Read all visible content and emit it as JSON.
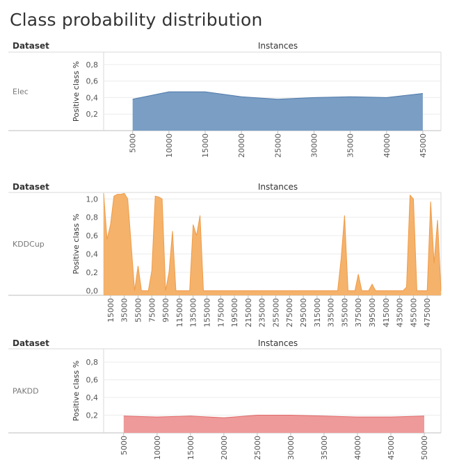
{
  "page": {
    "title": "Class probability distribution"
  },
  "chart_data": [
    {
      "type": "area",
      "header_left": "Dataset",
      "header_center": "Instances",
      "dataset": "Elec",
      "ylabel": "Positive class %",
      "color": "#7a9ec4",
      "stroke": "#4f79a9",
      "ylim": [
        0,
        0.95
      ],
      "yticks": [
        "0,2",
        "0,4",
        "0,6",
        "0,8"
      ],
      "ytick_values": [
        0.2,
        0.4,
        0.6,
        0.8
      ],
      "xlim": [
        1000,
        47500
      ],
      "xticks": [
        "5000",
        "10000",
        "15000",
        "20000",
        "25000",
        "30000",
        "35000",
        "40000",
        "45000"
      ],
      "xtick_values": [
        5000,
        10000,
        15000,
        20000,
        25000,
        30000,
        35000,
        40000,
        45000
      ],
      "x": [
        5000,
        10000,
        15000,
        20000,
        25000,
        30000,
        35000,
        40000,
        45000
      ],
      "y": [
        0.38,
        0.47,
        0.47,
        0.41,
        0.38,
        0.4,
        0.41,
        0.4,
        0.45
      ]
    },
    {
      "type": "area",
      "header_left": "Dataset",
      "header_center": "Instances",
      "dataset": "KDDCup",
      "ylabel": "Positive class %",
      "color": "#f5b26b",
      "stroke": "#ef9b48",
      "ylim": [
        -0.05,
        1.07
      ],
      "yticks": [
        "0,0",
        "0,2",
        "0,4",
        "0,6",
        "0,8",
        "1,0"
      ],
      "ytick_values": [
        0.0,
        0.2,
        0.4,
        0.6,
        0.8,
        1.0
      ],
      "xlim": [
        5000,
        495000
      ],
      "xticks": [
        "15000",
        "35000",
        "55000",
        "75000",
        "95000",
        "115000",
        "135000",
        "155000",
        "175000",
        "195000",
        "215000",
        "235000",
        "255000",
        "275000",
        "295000",
        "315000",
        "335000",
        "355000",
        "375000",
        "395000",
        "415000",
        "435000",
        "455000",
        "475000"
      ],
      "xtick_values": [
        15000,
        35000,
        55000,
        75000,
        95000,
        115000,
        135000,
        155000,
        175000,
        195000,
        215000,
        235000,
        255000,
        275000,
        295000,
        315000,
        335000,
        355000,
        375000,
        395000,
        415000,
        435000,
        455000,
        475000
      ],
      "x": [
        5000,
        10000,
        15000,
        20000,
        25000,
        30000,
        35000,
        40000,
        45000,
        50000,
        55000,
        60000,
        65000,
        70000,
        75000,
        80000,
        85000,
        90000,
        95000,
        100000,
        105000,
        110000,
        115000,
        120000,
        125000,
        130000,
        135000,
        140000,
        145000,
        150000,
        155000,
        160000,
        340000,
        345000,
        350000,
        355000,
        360000,
        370000,
        375000,
        380000,
        390000,
        395000,
        400000,
        435000,
        440000,
        445000,
        450000,
        455000,
        460000,
        465000,
        470000,
        475000,
        480000,
        485000,
        490000,
        495000
      ],
      "y": [
        1.06,
        0.56,
        0.72,
        1.03,
        1.05,
        1.05,
        1.06,
        1.0,
        0.5,
        0.0,
        0.27,
        0.0,
        0.0,
        0.0,
        0.22,
        1.03,
        1.02,
        1.0,
        0.0,
        0.2,
        0.65,
        0.0,
        0.0,
        0.0,
        0.0,
        0.0,
        0.72,
        0.6,
        0.82,
        0.0,
        0.0,
        0.0,
        0.0,
        0.0,
        0.35,
        0.82,
        0.0,
        0.0,
        0.18,
        0.0,
        0.0,
        0.07,
        0.0,
        0.0,
        0.0,
        0.04,
        1.04,
        1.0,
        0.0,
        0.0,
        0.0,
        0.0,
        0.97,
        0.3,
        0.77,
        0.0
      ]
    },
    {
      "type": "area",
      "header_left": "Dataset",
      "header_center": "Instances",
      "dataset": "PAKDD",
      "ylabel": "Positive class %",
      "color": "#ee9a9a",
      "stroke": "#e06a6a",
      "ylim": [
        0,
        0.95
      ],
      "yticks": [
        "0,2",
        "0,4",
        "0,6",
        "0,8"
      ],
      "ytick_values": [
        0.2,
        0.4,
        0.6,
        0.8
      ],
      "xlim": [
        2000,
        52500
      ],
      "xticks": [
        "5000",
        "10000",
        "15000",
        "20000",
        "25000",
        "30000",
        "35000",
        "40000",
        "45000",
        "50000"
      ],
      "xtick_values": [
        5000,
        10000,
        15000,
        20000,
        25000,
        30000,
        35000,
        40000,
        45000,
        50000
      ],
      "x": [
        5000,
        10000,
        15000,
        20000,
        25000,
        30000,
        35000,
        40000,
        45000,
        50000
      ],
      "y": [
        0.19,
        0.18,
        0.19,
        0.17,
        0.2,
        0.2,
        0.19,
        0.18,
        0.18,
        0.19
      ]
    }
  ]
}
